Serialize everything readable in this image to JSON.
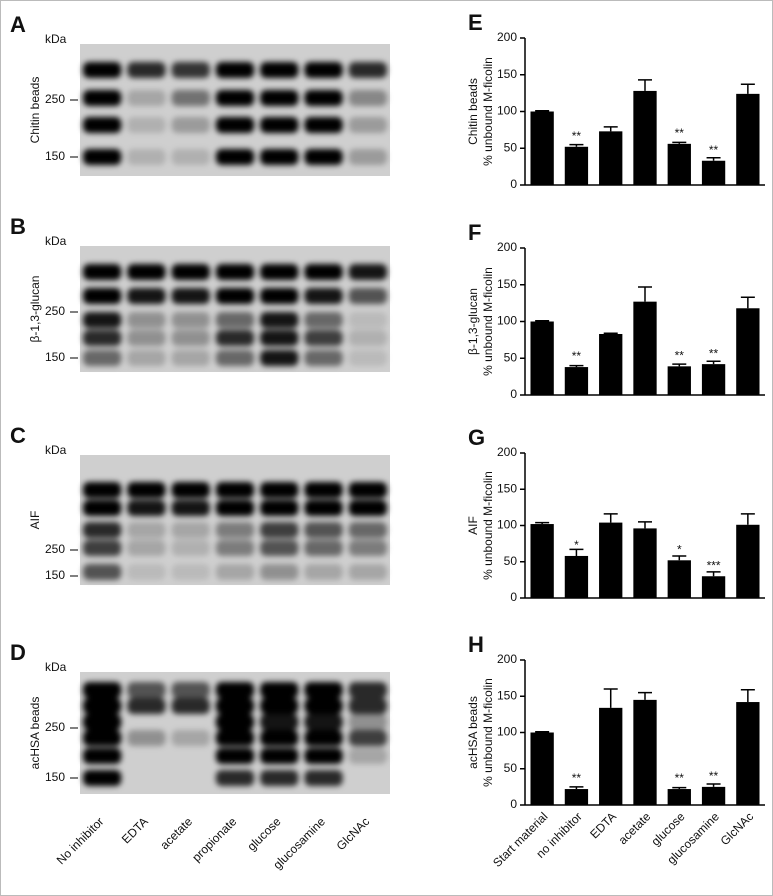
{
  "blots": [
    {
      "letter": "A",
      "unit": "kDa",
      "label": "Chitin beads",
      "markers": [
        "250",
        "150"
      ]
    },
    {
      "letter": "B",
      "unit": "kDa",
      "label": "β-1,3-glucan",
      "markers": [
        "250",
        "150"
      ]
    },
    {
      "letter": "C",
      "unit": "kDa",
      "label": "AIF",
      "markers": [
        "250",
        "150"
      ]
    },
    {
      "letter": "D",
      "unit": "kDa",
      "label": "acHSA beads",
      "markers": [
        "250",
        "150"
      ]
    }
  ],
  "lane_labels": [
    "No inhibitor",
    "EDTA",
    "acetate",
    "propionate",
    "glucose",
    "glucosamine",
    "GlcNAc"
  ],
  "chart_data": [
    {
      "type": "bar",
      "letter": "E",
      "ylabel": [
        "Chitin beads",
        "% unbound M-ficolin"
      ],
      "color": "#000000",
      "values": [
        100,
        52,
        73,
        128,
        56,
        33,
        124
      ],
      "errors": [
        1,
        3,
        6,
        15,
        2,
        4,
        13
      ],
      "annotations": [
        null,
        "**",
        null,
        null,
        "**",
        "**",
        null
      ],
      "ylim": [
        0,
        200
      ],
      "yticks": [
        0,
        50,
        100,
        150,
        200
      ]
    },
    {
      "type": "bar",
      "letter": "F",
      "ylabel": [
        "β-1,3-glucan",
        "% unbound M-ficolin"
      ],
      "color": "#000000",
      "values": [
        100,
        38,
        83,
        127,
        39,
        42,
        118
      ],
      "errors": [
        1,
        2,
        1,
        20,
        3,
        4,
        15
      ],
      "annotations": [
        null,
        "**",
        null,
        null,
        "**",
        "**",
        null
      ],
      "ylim": [
        0,
        200
      ],
      "yticks": [
        0,
        50,
        100,
        150,
        200
      ]
    },
    {
      "type": "bar",
      "letter": "G",
      "ylabel": [
        "AIF",
        "% unbound M-ficolin"
      ],
      "color": "#000000",
      "values": [
        102,
        58,
        104,
        96,
        52,
        30,
        101
      ],
      "errors": [
        2,
        9,
        12,
        9,
        6,
        6,
        15
      ],
      "annotations": [
        null,
        "*",
        null,
        null,
        "*",
        "***",
        null
      ],
      "ylim": [
        0,
        200
      ],
      "yticks": [
        0,
        50,
        100,
        150,
        200
      ]
    },
    {
      "type": "bar",
      "letter": "H",
      "ylabel": [
        "acHSA beads",
        "% unbound M-ficolin"
      ],
      "color": "#000000",
      "categories": [
        "Start material",
        "no inhibitor",
        "EDTA",
        "acetate",
        "glucose",
        "glucosamine",
        "GlcNAc"
      ],
      "values": [
        100,
        22,
        134,
        145,
        22,
        25,
        142
      ],
      "errors": [
        1,
        3,
        26,
        10,
        2,
        4,
        17
      ],
      "annotations": [
        null,
        "**",
        null,
        null,
        "**",
        "**",
        null
      ],
      "ylim": [
        0,
        200
      ],
      "yticks": [
        0,
        50,
        100,
        150,
        200
      ]
    }
  ]
}
